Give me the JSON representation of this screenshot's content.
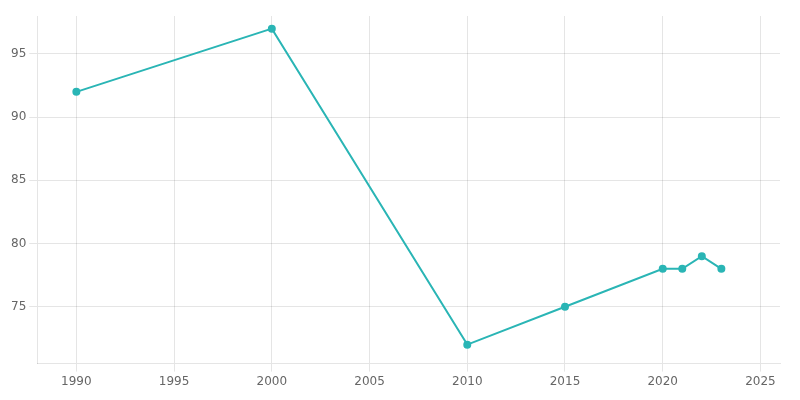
{
  "chart_data": {
    "type": "line",
    "x": [
      1990,
      2000,
      2010,
      2015,
      2020,
      2021,
      2022,
      2023
    ],
    "values": [
      92,
      97,
      72,
      75,
      78,
      78,
      79,
      78
    ],
    "color": "#2ab5b5",
    "marker": "circle",
    "xlim": [
      1988,
      2026
    ],
    "ylim": [
      70.5,
      98
    ],
    "xticks": [
      1990,
      1995,
      2000,
      2005,
      2010,
      2015,
      2020,
      2025
    ],
    "yticks": [
      75,
      80,
      85,
      90,
      95
    ],
    "grid": true
  }
}
